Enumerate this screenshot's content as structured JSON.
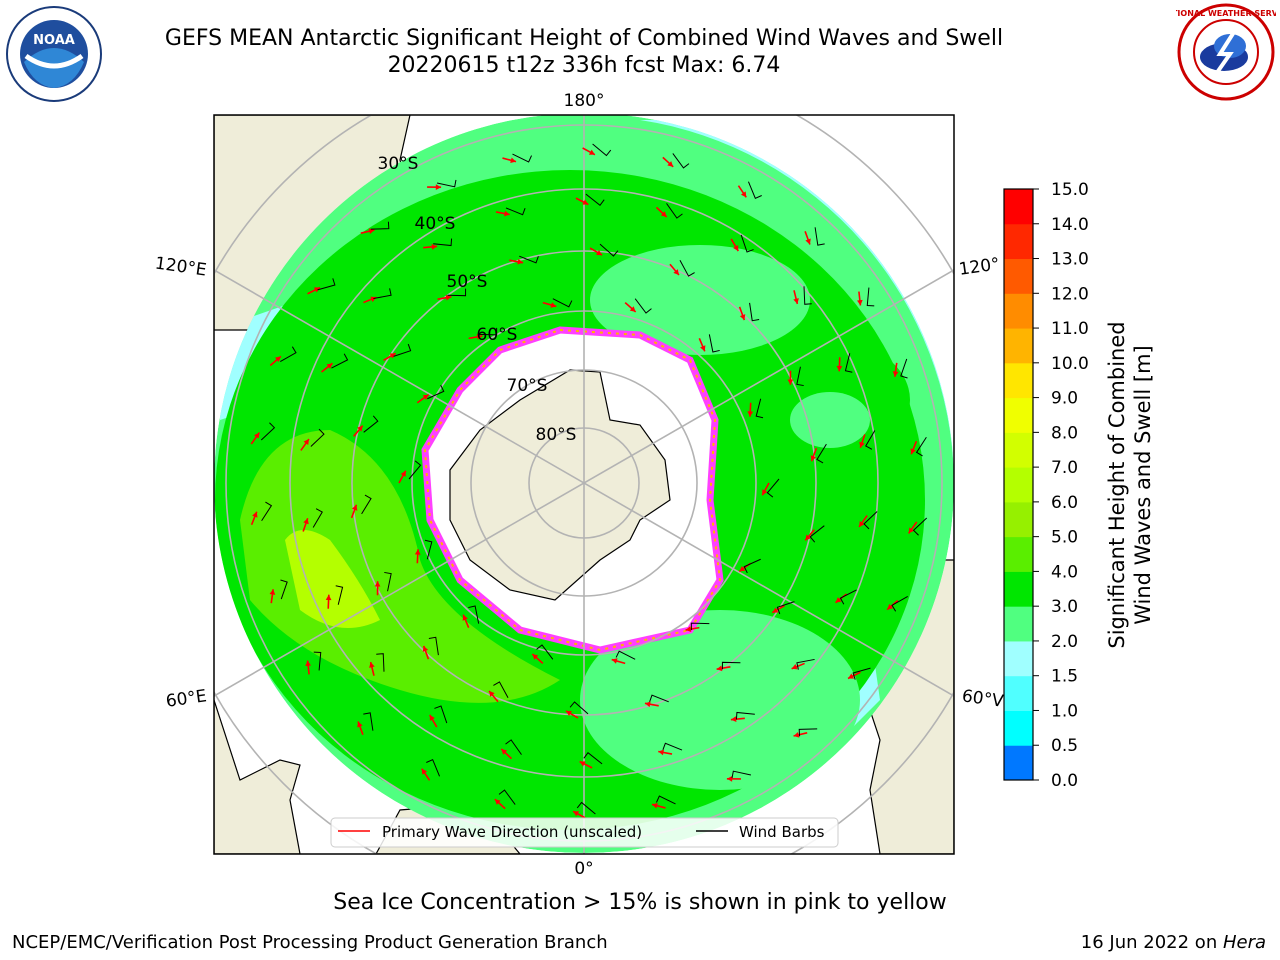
{
  "header": {
    "title_line1": "GEFS MEAN Antarctic Significant Height of Combined Wind Waves and Swell",
    "title_line2": "20220615 t12z 336h fcst   Max: 6.74"
  },
  "map": {
    "lon_labels": [
      "180°",
      "120°E",
      "120°",
      "60°E",
      "60°V",
      "0°"
    ],
    "lat_labels": [
      "30°S",
      "40°S",
      "50°S",
      "60°S",
      "70°S",
      "80°S"
    ]
  },
  "legend": {
    "wave_label": "Primary Wave Direction (unscaled)",
    "barb_label": "Wind Barbs",
    "wave_color": "#ff0000",
    "barb_color": "#000000"
  },
  "colorbar": {
    "title_line1": "Significant Height of Combined",
    "title_line2": "Wind Waves and Swell [m]",
    "ticks": [
      "15.0",
      "14.0",
      "13.0",
      "12.0",
      "11.0",
      "10.0",
      "9.0",
      "8.0",
      "7.0",
      "6.0",
      "5.0",
      "4.0",
      "3.0",
      "2.0",
      "1.5",
      "1.0",
      "0.5",
      "0.0"
    ],
    "colors": [
      "#ff0000",
      "#ff2800",
      "#ff5a00",
      "#ff8c00",
      "#ffb400",
      "#ffe600",
      "#f0ff00",
      "#d2ff00",
      "#b4ff00",
      "#96f000",
      "#5aee00",
      "#00e600",
      "#50ff80",
      "#a0ffff",
      "#50ffff",
      "#00ffff",
      "#0078ff",
      "#0000ff"
    ]
  },
  "caption": "Sea Ice Concentration > 15% is shown in pink to yellow",
  "footer": {
    "left": "NCEP/EMC/Verification Post Processing Product Generation Branch",
    "date": "16 Jun 2022 on ",
    "host": "Hera"
  },
  "logos": {
    "noaa_text": "NOAA",
    "nws_text": "NATIONAL WEATHER SERVICE"
  }
}
